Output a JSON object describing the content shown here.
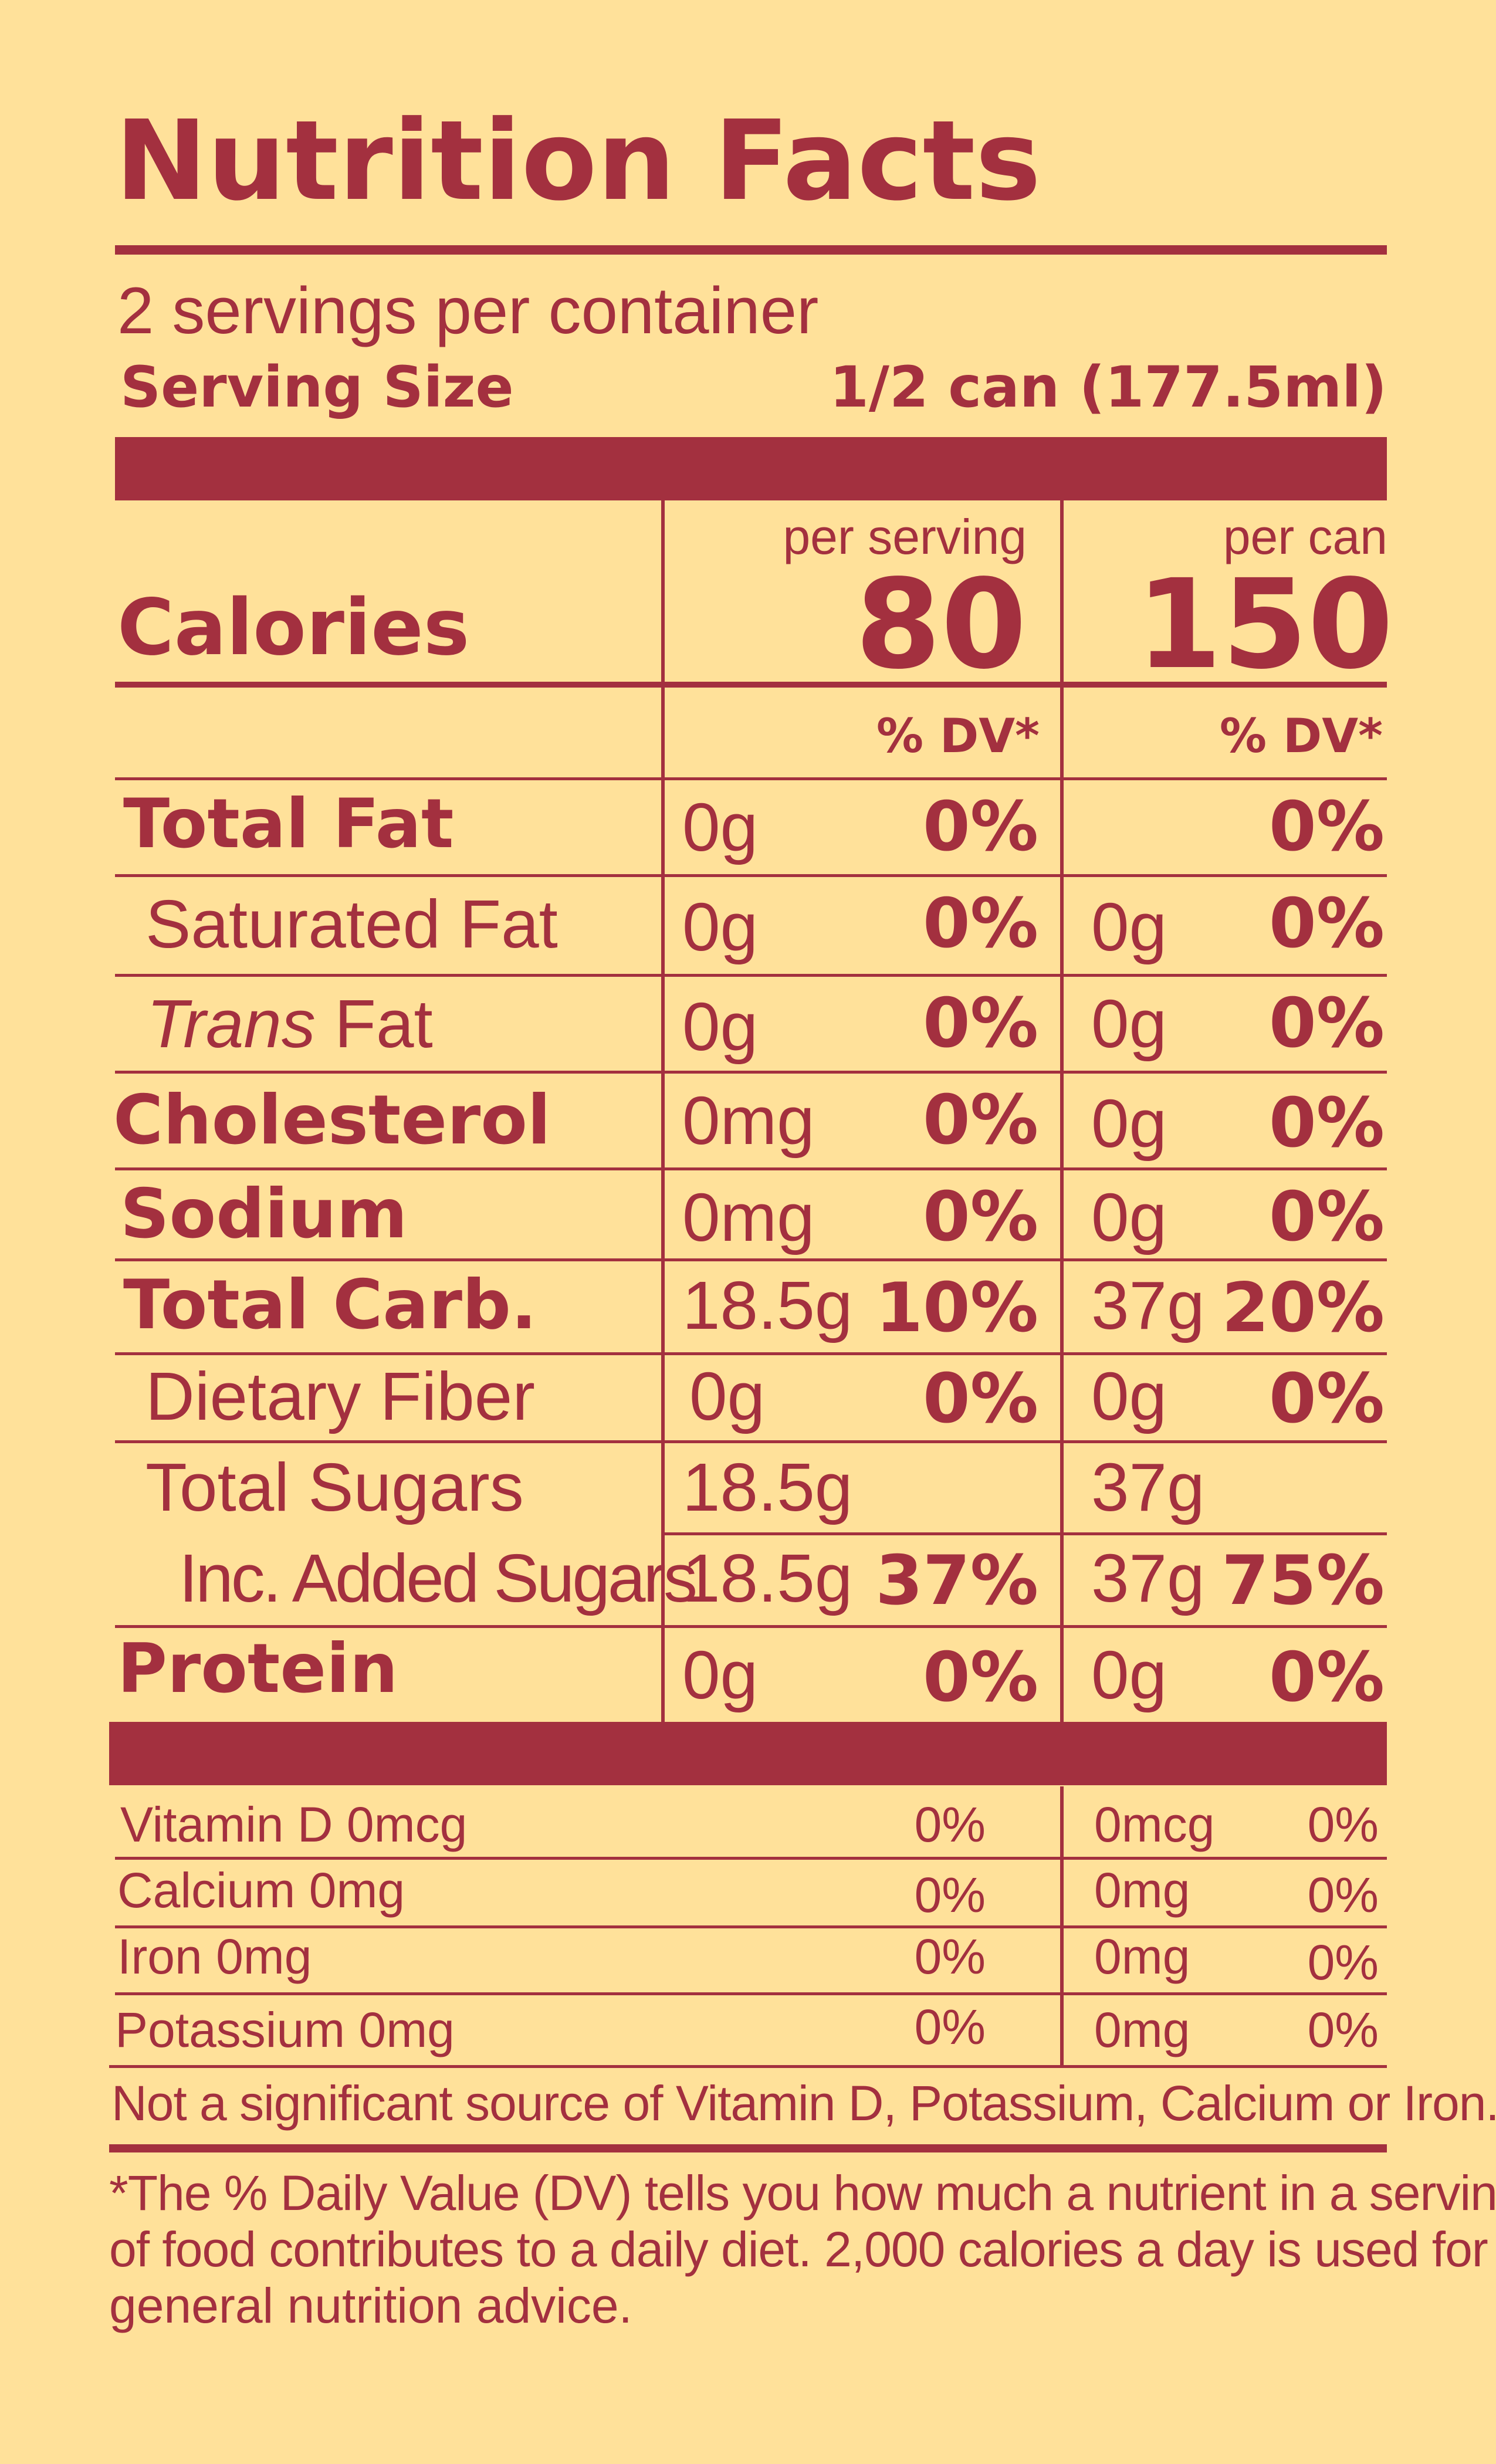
{
  "title": "Nutrition Facts",
  "servings_per_container": "2 servings per container",
  "serving_size_label": "Serving Size",
  "serving_size_value": "1/2 can (177.5ml)",
  "calories": {
    "label": "Calories",
    "col1_header": "per serving",
    "col1_value": "80",
    "col2_header": "per can",
    "col2_value": "150",
    "dv_header": "% DV*"
  },
  "nutrients": [
    {
      "label": "Total Fat",
      "amt1": "0g",
      "dv1": "0%",
      "amt2": "",
      "dv2": "0%"
    },
    {
      "label": "Saturated Fat",
      "amt1": "0g",
      "dv1": "0%",
      "amt2": "0g",
      "dv2": "0%"
    },
    {
      "label_italic": "Trans",
      "label": " Fat",
      "amt1": "0g",
      "dv1": "0%",
      "amt2": "0g",
      "dv2": "0%"
    },
    {
      "label": "Cholesterol",
      "amt1": "0mg",
      "dv1": "0%",
      "amt2": "0g",
      "dv2": "0%"
    },
    {
      "label": "Sodium",
      "amt1": "0mg",
      "dv1": "0%",
      "amt2": "0g",
      "dv2": "0%"
    },
    {
      "label": "Total Carb.",
      "amt1": "18.5g",
      "dv1": "10%",
      "amt2": "37g",
      "dv2": "20%"
    },
    {
      "label": "Dietary Fiber",
      "amt1": "0g",
      "dv1": "0%",
      "amt2": "0g",
      "dv2": "0%"
    },
    {
      "label": "Total Sugars",
      "amt1": "18.5g",
      "dv1": "",
      "amt2": "37g",
      "dv2": ""
    },
    {
      "label": "Inc. Added Sugars",
      "amt1": "18.5g",
      "dv1": "37%",
      "amt2": "37g",
      "dv2": "75%"
    },
    {
      "label": "Protein",
      "amt1": "0g",
      "dv1": "0%",
      "amt2": "0g",
      "dv2": "0%"
    }
  ],
  "vitamins": [
    {
      "label": "Vitamin D 0mcg",
      "dv1": "0%",
      "amt2": "0mcg",
      "dv2": "0%"
    },
    {
      "label": "Calcium 0mg",
      "dv1": "0%",
      "amt2": "0mg",
      "dv2": "0%"
    },
    {
      "label": "Iron 0mg",
      "dv1": "0%",
      "amt2": "0mg",
      "dv2": "0%"
    },
    {
      "label": "Potassium 0mg",
      "dv1": "0%",
      "amt2": "0mg",
      "dv2": "0%"
    }
  ],
  "not_significant": "Not a significant source of Vitamin D, Potassium, Calcium or Iron.",
  "footnote_line1": "*The % Daily Value (DV) tells you how much a nutrient in a serving",
  "footnote_line2": "of food contributes to a daily diet. 2,000 calories a day is used for",
  "footnote_line3": "general nutrition advice.",
  "colors": {
    "background": "#ffe19a",
    "ink": "#a3303f"
  }
}
